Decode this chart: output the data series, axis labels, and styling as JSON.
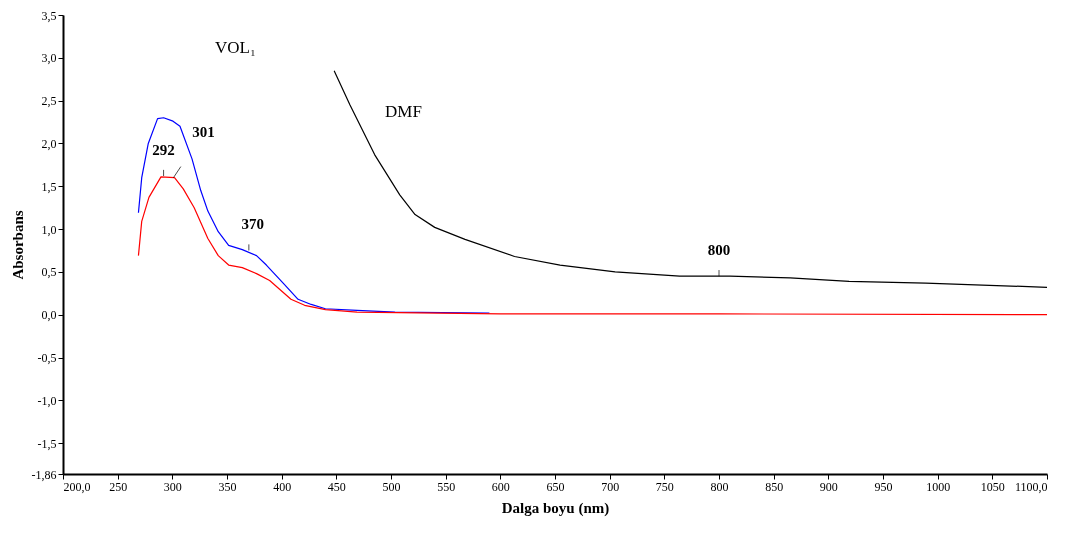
{
  "chart_data": {
    "type": "line",
    "xlabel": "Dalga boyu (nm)",
    "ylabel": "Absorbans",
    "xlim": [
      200,
      1100
    ],
    "ylim": [
      -1.86,
      3.5
    ],
    "xticks": [
      {
        "value": 200,
        "label": "200,0"
      },
      250,
      300,
      350,
      400,
      450,
      500,
      550,
      600,
      650,
      700,
      750,
      800,
      850,
      900,
      950,
      1000,
      1050,
      {
        "value": 1100,
        "label": "1100,0"
      }
    ],
    "yticks": [
      {
        "value": -1.86,
        "label": "-1,86"
      },
      {
        "value": -1.5,
        "label": "-1,5"
      },
      {
        "value": -1.0,
        "label": "-1,0"
      },
      {
        "value": -0.5,
        "label": "-0,5"
      },
      {
        "value": 0.0,
        "label": "0,0"
      },
      {
        "value": 0.5,
        "label": "0,5"
      },
      {
        "value": 1.0,
        "label": "1,0"
      },
      {
        "value": 1.5,
        "label": "1,5"
      },
      {
        "value": 2.0,
        "label": "2,0"
      },
      {
        "value": 2.5,
        "label": "2,5"
      },
      {
        "value": 3.0,
        "label": "3,0"
      },
      {
        "value": 3.5,
        "label": "3,5"
      }
    ],
    "grid": false,
    "marker": "none",
    "line_style": "solid",
    "series": [
      {
        "color": "#0000ff",
        "x": [
          269,
          272,
          278,
          286.5,
          292,
          300.6,
          307,
          318,
          326,
          332.5,
          342,
          351.5,
          364,
          377,
          386,
          402,
          415,
          427,
          440,
          469,
          503.6,
          590
        ],
        "values": [
          1.19,
          1.6,
          2.0,
          2.29,
          2.3,
          2.26,
          2.2,
          1.82,
          1.45,
          1.21,
          0.97,
          0.81,
          0.76,
          0.69,
          0.58,
          0.36,
          0.18,
          0.12,
          0.07,
          0.05,
          0.03,
          0.02
        ]
      },
      {
        "color": "#ff0000",
        "x": [
          269,
          272,
          278.6,
          289.6,
          302,
          310,
          320,
          332.5,
          342,
          351.5,
          364,
          377,
          389,
          408.5,
          421,
          440,
          469,
          600,
          800,
          1100
        ],
        "values": [
          0.69,
          1.09,
          1.37,
          1.61,
          1.6,
          1.47,
          1.25,
          0.89,
          0.69,
          0.58,
          0.55,
          0.48,
          0.4,
          0.18,
          0.11,
          0.06,
          0.03,
          0.01,
          0.01,
          0.0
        ]
      },
      {
        "name": "DMF",
        "color": "#000000",
        "x": [
          448,
          462.5,
          485,
          508,
          522,
          540,
          567.7,
          613,
          654.6,
          705,
          764,
          810,
          865,
          919,
          989,
          1100
        ],
        "values": [
          2.85,
          2.45,
          1.87,
          1.4,
          1.17,
          1.02,
          0.88,
          0.68,
          0.58,
          0.5,
          0.45,
          0.45,
          0.43,
          0.39,
          0.37,
          0.32
        ]
      }
    ],
    "annotations": [
      "VOL₁",
      {
        "text": "292",
        "x": 292,
        "y": 1.62
      },
      {
        "text": "301",
        "x": 301,
        "y": 1.6
      },
      {
        "text": "370",
        "x": 370,
        "y": 0.75
      },
      {
        "text": "800",
        "x": 800,
        "y": 0.45
      }
    ]
  }
}
